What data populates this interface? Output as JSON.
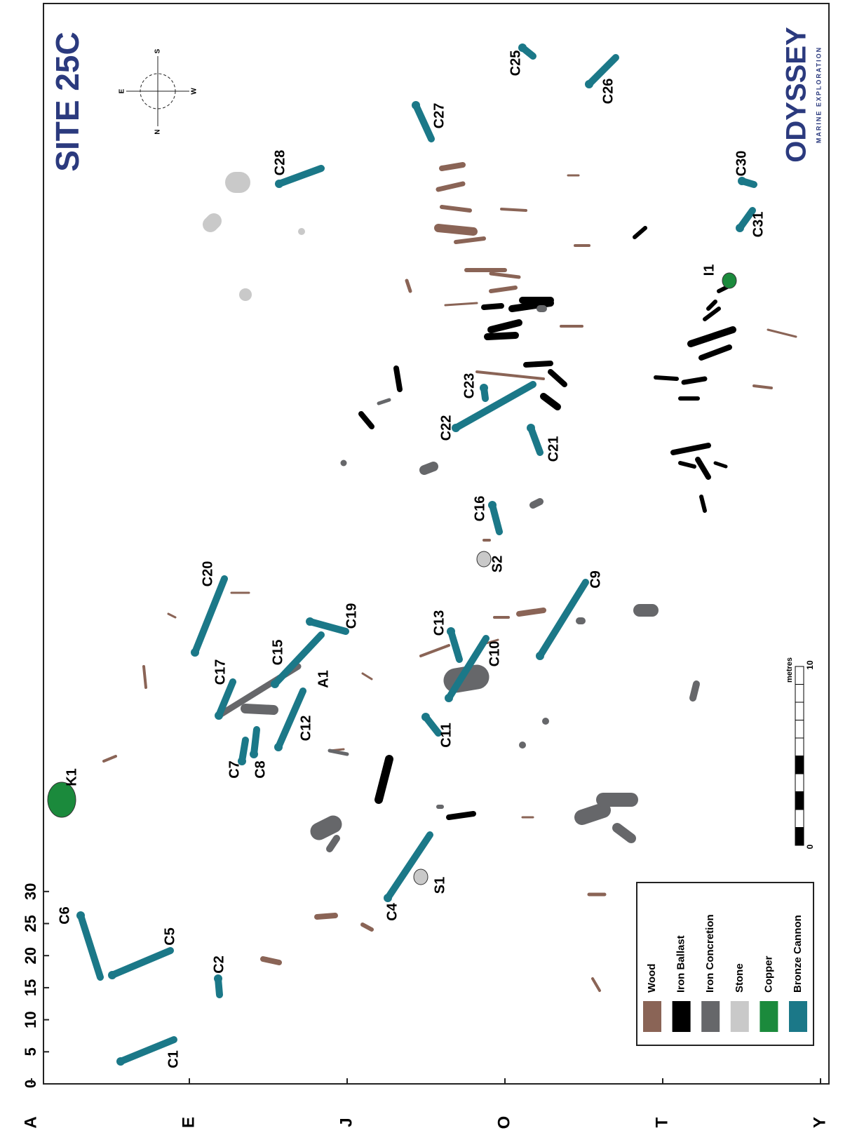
{
  "title": "SITE 25C",
  "logo": {
    "name": "ODYSSEY",
    "tagline": "MARINE EXPLORATION"
  },
  "compass": [
    "S",
    "E",
    "W",
    "N"
  ],
  "axis": {
    "metres": [
      0,
      5,
      10,
      15,
      20,
      25,
      30
    ],
    "rows": [
      "A",
      "E",
      "J",
      "O",
      "T",
      "Y"
    ]
  },
  "artifacts": [
    "C1",
    "C2",
    "C5",
    "C6",
    "K1",
    "C4",
    "S1",
    "C7",
    "C8",
    "C12",
    "A1",
    "C17",
    "C15",
    "C19",
    "C20",
    "C11",
    "C13",
    "C10",
    "C9",
    "S2",
    "C16",
    "C21",
    "C22",
    "C23",
    "C27",
    "C28",
    "C25",
    "C26",
    "C30",
    "C31",
    "I1"
  ],
  "legend": [
    {
      "label": "Wood",
      "color": "#8a6456"
    },
    {
      "label": "Iron Ballast",
      "color": "#000000"
    },
    {
      "label": "Iron Concretion",
      "color": "#66676a"
    },
    {
      "label": "Stone",
      "color": "#c9c9c9"
    },
    {
      "label": "Copper",
      "color": "#1b8a3c"
    },
    {
      "label": "Bronze Cannon",
      "color": "#1b7888"
    }
  ],
  "scale": {
    "unit": "metres",
    "start": 0,
    "end": 10
  }
}
